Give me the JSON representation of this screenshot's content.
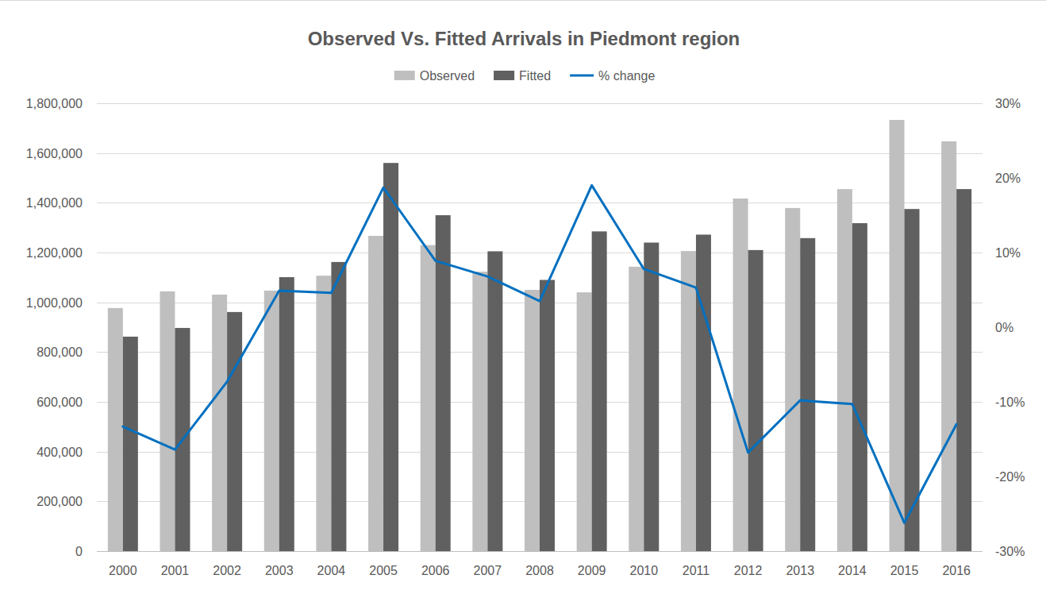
{
  "chart_data": {
    "type": "bar",
    "title": "Observed Vs. Fitted Arrivals in Piedmont region",
    "categories": [
      "2000",
      "2001",
      "2002",
      "2003",
      "2004",
      "2005",
      "2006",
      "2007",
      "2008",
      "2009",
      "2010",
      "2011",
      "2012",
      "2013",
      "2014",
      "2015",
      "2016"
    ],
    "series": [
      {
        "name": "Observed",
        "type": "bar",
        "color": "#bfbfbf",
        "values": [
          977000,
          1044000,
          1031000,
          1047000,
          1107000,
          1267000,
          1230000,
          1123000,
          1050000,
          1040000,
          1143000,
          1206000,
          1417000,
          1379000,
          1455000,
          1733000,
          1647000
        ]
      },
      {
        "name": "Fitted",
        "type": "bar",
        "color": "#606060",
        "values": [
          862000,
          897000,
          961000,
          1101000,
          1162000,
          1560000,
          1350000,
          1205000,
          1090000,
          1285000,
          1240000,
          1272000,
          1210000,
          1258000,
          1318000,
          1375000,
          1455000
        ]
      },
      {
        "name": "% change",
        "type": "line",
        "axis": "y2",
        "color": "#0070c0",
        "values": [
          -13.3,
          -16.4,
          -7.3,
          4.9,
          4.6,
          18.7,
          8.9,
          6.8,
          3.5,
          19.0,
          7.8,
          5.3,
          -16.8,
          -9.8,
          -10.3,
          -26.2,
          -13.0
        ]
      }
    ],
    "ylim": [
      0,
      1800000
    ],
    "yticks": [
      0,
      {
        "value": 200000,
        "label": "200,000"
      },
      {
        "value": 400000,
        "label": "400,000"
      },
      {
        "value": 600000,
        "label": "600,000"
      },
      {
        "value": 800000,
        "label": "800,000"
      },
      {
        "value": 1000000,
        "label": "1,000,000"
      },
      {
        "value": 1200000,
        "label": "1,200,000"
      },
      {
        "value": 1400000,
        "label": "1,400,000"
      },
      {
        "value": 1600000,
        "label": "1,600,000"
      },
      {
        "value": 1800000,
        "label": "1,800,000"
      }
    ],
    "y2lim": [
      -30,
      30
    ],
    "y2ticks": [
      {
        "value": -30,
        "label": "-30%"
      },
      {
        "value": -20,
        "label": "-20%"
      },
      {
        "value": -10,
        "label": "-10%"
      },
      {
        "value": 0,
        "label": "0%"
      },
      {
        "value": 10,
        "label": "10%"
      },
      {
        "value": 20,
        "label": "20%"
      },
      {
        "value": 30,
        "label": "30%"
      }
    ],
    "grid": true,
    "legend": "top"
  }
}
